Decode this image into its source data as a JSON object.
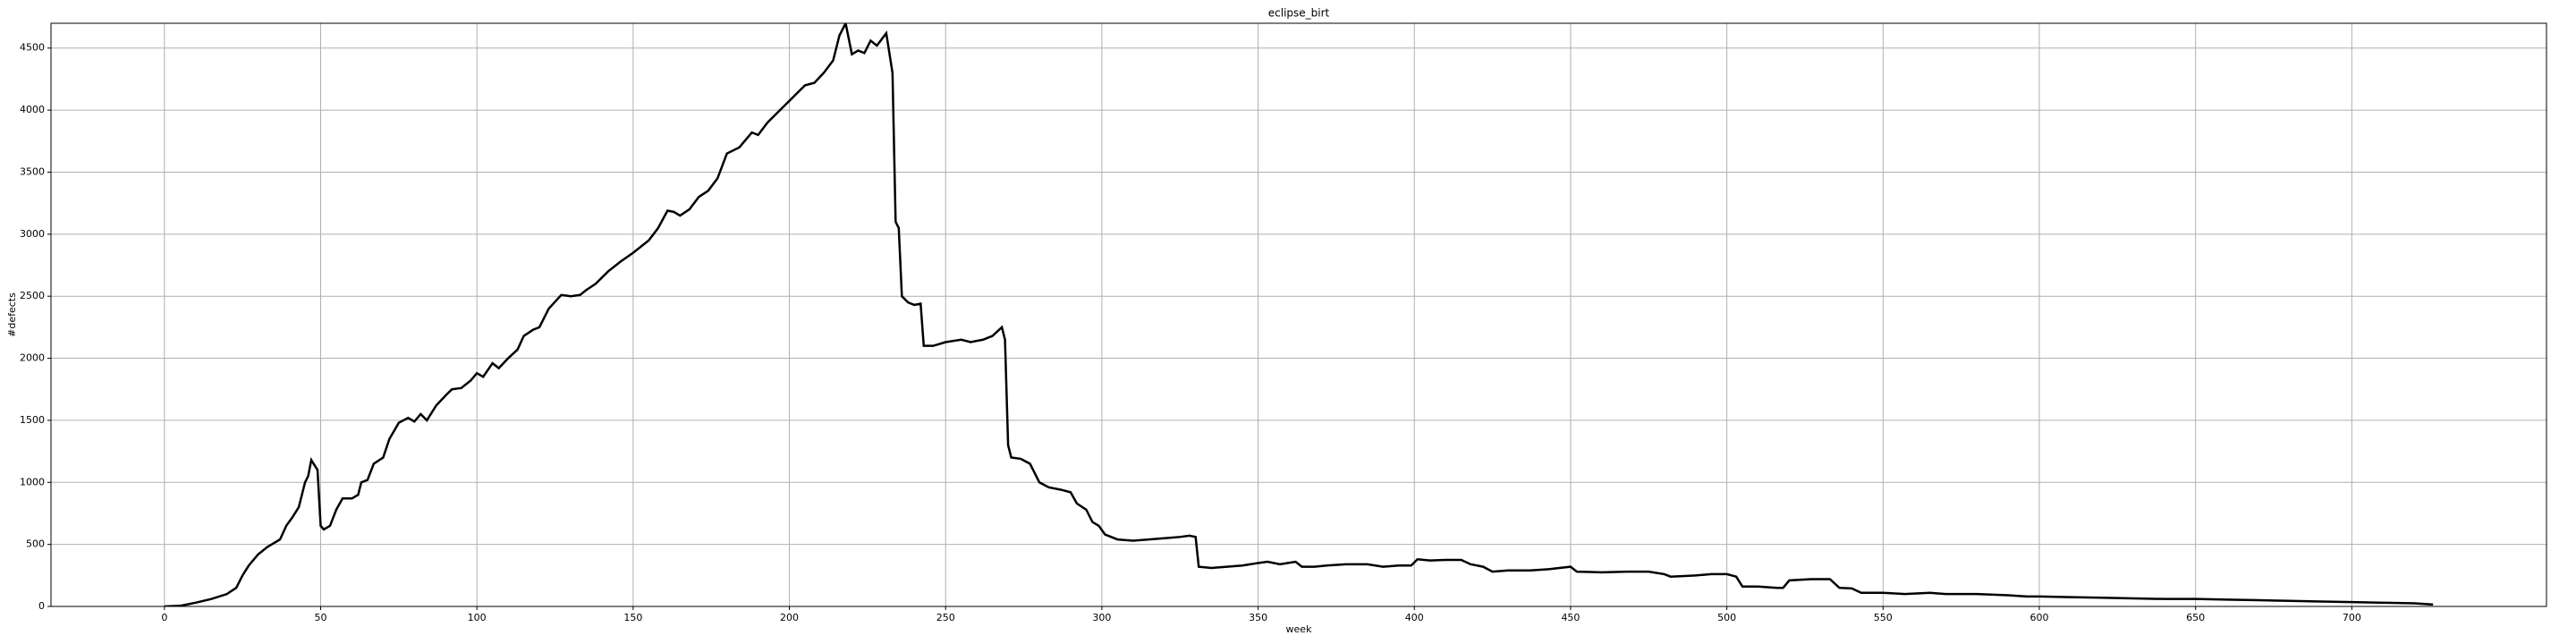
{
  "chart_data": {
    "type": "line",
    "title": "eclipse_birt",
    "xlabel": "week",
    "ylabel": "#defects",
    "x": [
      0,
      5,
      8,
      10,
      15,
      20,
      23,
      25,
      27,
      30,
      33,
      37,
      39,
      41,
      43,
      45,
      46,
      47,
      49,
      50,
      51,
      53,
      55,
      57,
      60,
      62,
      63,
      65,
      67,
      70,
      72,
      75,
      78,
      80,
      82,
      84,
      87,
      90,
      92,
      95,
      98,
      100,
      102,
      105,
      107,
      110,
      113,
      115,
      118,
      120,
      123,
      127,
      130,
      133,
      135,
      138,
      142,
      146,
      150,
      155,
      158,
      161,
      163,
      165,
      168,
      171,
      174,
      177,
      180,
      184,
      188,
      190,
      193,
      197,
      201,
      205,
      208,
      211,
      214,
      216,
      218,
      220,
      222,
      224,
      226,
      228,
      231,
      233,
      234,
      235,
      236,
      238,
      240,
      242,
      243,
      246,
      250,
      255,
      258,
      262,
      265,
      268,
      269,
      270,
      271,
      274,
      277,
      280,
      283,
      287,
      290,
      292,
      295,
      297,
      299,
      301,
      305,
      310,
      315,
      320,
      325,
      328,
      330,
      331,
      335,
      340,
      345,
      350,
      353,
      357,
      362,
      364,
      368,
      372,
      378,
      385,
      390,
      395,
      399,
      401,
      405,
      410,
      415,
      418,
      422,
      425,
      430,
      437,
      443,
      450,
      452,
      460,
      468,
      475,
      480,
      482,
      490,
      495,
      500,
      503,
      505,
      510,
      516,
      518,
      520,
      527,
      533,
      536,
      540,
      543,
      550,
      557,
      565,
      570,
      580,
      590,
      596,
      600,
      610,
      620,
      630,
      640,
      650,
      660,
      670,
      680,
      690,
      700,
      710,
      720,
      726
    ],
    "series": [
      {
        "color": "#000000",
        "values": [
          0,
          5,
          20,
          30,
          60,
          100,
          150,
          250,
          330,
          420,
          480,
          540,
          650,
          720,
          800,
          1000,
          1050,
          1180,
          1100,
          650,
          620,
          650,
          780,
          870,
          870,
          900,
          1000,
          1020,
          1150,
          1200,
          1350,
          1480,
          1520,
          1490,
          1550,
          1500,
          1620,
          1700,
          1750,
          1760,
          1820,
          1880,
          1850,
          1960,
          1920,
          2000,
          2070,
          2180,
          2230,
          2250,
          2400,
          2510,
          2500,
          2510,
          2550,
          2600,
          2700,
          2780,
          2850,
          2950,
          3050,
          3190,
          3180,
          3150,
          3200,
          3300,
          3350,
          3450,
          3650,
          3700,
          3820,
          3800,
          3900,
          4000,
          4100,
          4200,
          4220,
          4300,
          4400,
          4600,
          4700,
          4450,
          4480,
          4460,
          4560,
          4520,
          4620,
          4300,
          3100,
          3050,
          2500,
          2450,
          2430,
          2440,
          2100,
          2100,
          2130,
          2150,
          2130,
          2150,
          2180,
          2250,
          2150,
          1300,
          1200,
          1190,
          1150,
          1000,
          960,
          940,
          920,
          830,
          780,
          680,
          650,
          580,
          540,
          530,
          540,
          550,
          560,
          570,
          560,
          320,
          310,
          320,
          330,
          350,
          360,
          340,
          360,
          320,
          320,
          330,
          340,
          340,
          320,
          330,
          330,
          380,
          370,
          375,
          375,
          340,
          320,
          280,
          290,
          290,
          300,
          320,
          280,
          275,
          280,
          280,
          260,
          240,
          250,
          260,
          260,
          240,
          160,
          160,
          150,
          150,
          210,
          220,
          220,
          150,
          145,
          110,
          110,
          100,
          110,
          100,
          100,
          90,
          80,
          80,
          75,
          70,
          65,
          60,
          60,
          55,
          50,
          45,
          40,
          35,
          30,
          25,
          15
        ]
      }
    ],
    "xlim": [
      -36.3,
      762.3
    ],
    "ylim": [
      0,
      4700
    ],
    "xticks": [
      0,
      50,
      100,
      150,
      200,
      250,
      300,
      350,
      400,
      450,
      500,
      550,
      600,
      650,
      700
    ],
    "yticks": [
      0,
      500,
      1000,
      1500,
      2000,
      2500,
      3000,
      3500,
      4000,
      4500
    ],
    "grid": true
  }
}
